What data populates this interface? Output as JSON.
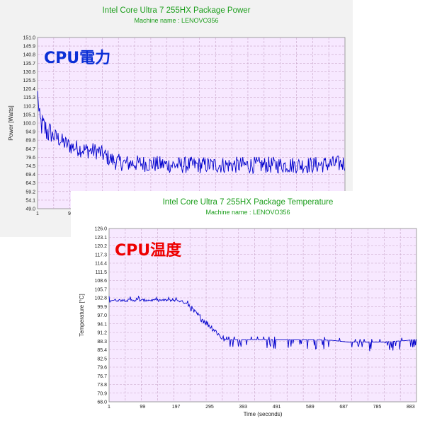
{
  "colors": {
    "title": "#1c9e1c",
    "plot_bg": "#f7e8ff",
    "grid": "#c7a3c7",
    "series": "#0000cc",
    "power_overlay": "#0a2fd6",
    "temp_overlay": "#ee0000"
  },
  "power_chart": {
    "overlay_label": "CPU電力"
  },
  "temp_chart": {
    "overlay_label": "CPU温度"
  },
  "chart_data": [
    {
      "type": "line",
      "title": "Intel Core Ultra 7 255HX Package Power",
      "subtitle": "Machine name : LENOVO356",
      "ylabel": "Power [Watts]",
      "xlabel": "",
      "ylim": [
        49.0,
        151.0
      ],
      "xlim": [
        1,
        900
      ],
      "yticks": [
        "151.0",
        "145.9",
        "140.8",
        "135.7",
        "130.6",
        "125.5",
        "120.4",
        "115.3",
        "110.2",
        "105.1",
        "100.0",
        "94.9",
        "89.8",
        "84.7",
        "79.6",
        "74.5",
        "69.4",
        "64.3",
        "59.2",
        "54.1",
        "49.0"
      ],
      "xticks": [
        "1",
        "9"
      ],
      "grid": true,
      "series": [
        {
          "color": "#0000cc",
          "points": [
            [
              1,
              103
            ],
            [
              10,
              100
            ],
            [
              20,
              97
            ],
            [
              40,
              93
            ],
            [
              60,
              91
            ],
            [
              80,
              88
            ],
            [
              100,
              86
            ],
            [
              140,
              84
            ],
            [
              180,
              83
            ],
            [
              210,
              79
            ],
            [
              230,
              77
            ],
            [
              260,
              76
            ],
            [
              300,
              76
            ],
            [
              400,
              75
            ],
            [
              500,
              75
            ],
            [
              600,
              75
            ],
            [
              700,
              75
            ],
            [
              800,
              75
            ],
            [
              900,
              76
            ]
          ],
          "noise": 10
        }
      ]
    },
    {
      "type": "line",
      "title": "Intel Core Ultra 7 255HX Package Temperature",
      "subtitle": "Machine name : LENOVO356",
      "ylabel": "Temperature [°C]",
      "xlabel": "Time (seconds)",
      "ylim": [
        68.0,
        126.0
      ],
      "xlim": [
        1,
        900
      ],
      "yticks": [
        "126.0",
        "123.1",
        "120.2",
        "117.3",
        "114.4",
        "111.5",
        "108.6",
        "105.7",
        "102.8",
        "99.9",
        "97.0",
        "94.1",
        "91.2",
        "88.3",
        "85.4",
        "82.5",
        "79.6",
        "76.7",
        "73.8",
        "70.9",
        "68.0"
      ],
      "xticks": [
        "1",
        "99",
        "197",
        "295",
        "393",
        "491",
        "589",
        "687",
        "785",
        "883"
      ],
      "grid": true,
      "series": [
        {
          "color": "#0000cc",
          "points": [
            [
              1,
              102
            ],
            [
              100,
              102
            ],
            [
              200,
              102
            ],
            [
              230,
              101
            ],
            [
              250,
              98
            ],
            [
              280,
              95
            ],
            [
              310,
              92
            ],
            [
              330,
              89.5
            ],
            [
              340,
              88.8
            ],
            [
              400,
              88.8
            ],
            [
              500,
              88.8
            ],
            [
              600,
              88.8
            ],
            [
              650,
              88.6
            ],
            [
              700,
              88
            ],
            [
              800,
              88
            ],
            [
              870,
              88.5
            ],
            [
              900,
              89
            ]
          ],
          "noise": 1.2
        }
      ]
    }
  ]
}
